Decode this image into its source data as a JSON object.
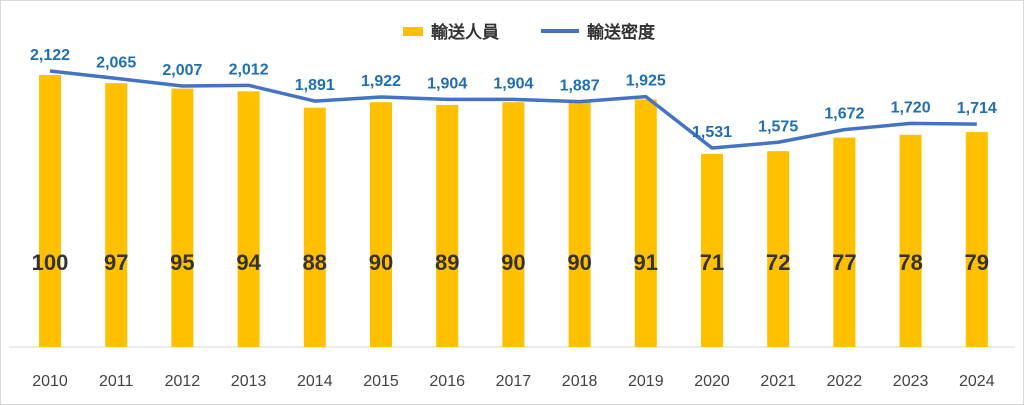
{
  "chart_data": {
    "type": "bar",
    "categories": [
      "2010",
      "2011",
      "2012",
      "2013",
      "2014",
      "2015",
      "2016",
      "2017",
      "2018",
      "2019",
      "2020",
      "2021",
      "2022",
      "2023",
      "2024"
    ],
    "series": [
      {
        "name": "輸送人員",
        "type": "bar",
        "values": [
          100,
          97,
          95,
          94,
          88,
          90,
          89,
          90,
          90,
          91,
          71,
          72,
          77,
          78,
          79
        ],
        "labels": [
          "100",
          "97",
          "95",
          "94",
          "88",
          "90",
          "89",
          "90",
          "90",
          "91",
          "71",
          "72",
          "77",
          "78",
          "79"
        ],
        "color": "#FFC000"
      },
      {
        "name": "輸送密度",
        "type": "line",
        "values": [
          2122,
          2065,
          2007,
          2012,
          1891,
          1922,
          1904,
          1904,
          1887,
          1925,
          1531,
          1575,
          1672,
          1720,
          1714
        ],
        "labels": [
          "2,122",
          "2,065",
          "2,007",
          "2,012",
          "1,891",
          "1,922",
          "1,904",
          "1,904",
          "1,887",
          "1,925",
          "1,531",
          "1,575",
          "1,672",
          "1,720",
          "1,714"
        ],
        "color": "#4472C4"
      }
    ],
    "legend": {
      "position": "top",
      "items": [
        "輸送人員",
        "輸送密度"
      ]
    },
    "bar_ylim": [
      0,
      100
    ],
    "line_ylim": [
      0,
      2122
    ],
    "grid": false,
    "title": "",
    "xlabel": "",
    "ylabel": ""
  }
}
